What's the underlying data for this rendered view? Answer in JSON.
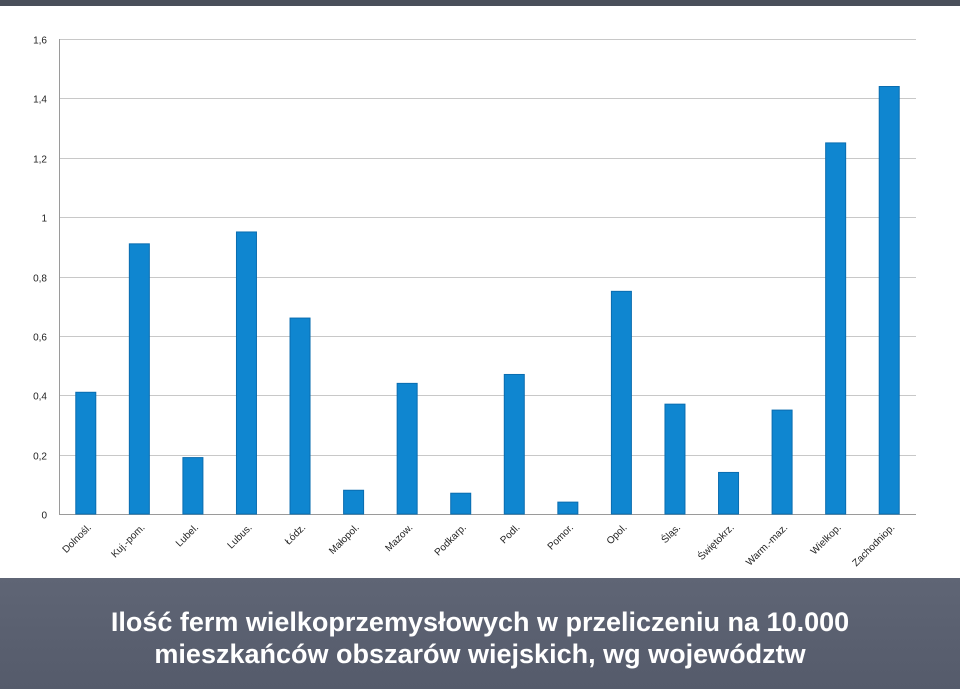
{
  "caption": {
    "line1": "Ilość ferm wielkoprzemysłowych w przeliczeniu na 10.000",
    "line2": "mieszkańców obszarów wiejskich, wg województw"
  },
  "colors": {
    "bar": "#0f86d0",
    "bar_edge": "#0a6db0",
    "grid": "#c8c8c8",
    "caption_bg": "#5a6070",
    "caption_text": "#ffffff"
  },
  "chart_data": {
    "type": "bar",
    "title": "",
    "xlabel": "",
    "ylabel": "",
    "ylim": [
      0,
      1.6
    ],
    "yticks": [
      "0",
      "0,2",
      "0,4",
      "0,6",
      "0,8",
      "1",
      "1,2",
      "1,4",
      "1,6"
    ],
    "grid": true,
    "legend": "none",
    "categories": [
      "Dolnośl.",
      "Kuj.-pom.",
      "Lubel.",
      "Lubus.",
      "Łódz.",
      "Małopol.",
      "Mazow.",
      "Podkarp.",
      "Podl.",
      "Pomor.",
      "Opol.",
      "Śląs.",
      "Świętokrz.",
      "Warm.-maz.",
      "Wielkop.",
      "Zachodniop."
    ],
    "values": [
      0.41,
      0.91,
      0.19,
      0.95,
      0.66,
      0.08,
      0.44,
      0.07,
      0.47,
      0.04,
      0.75,
      0.37,
      0.14,
      0.35,
      1.25,
      1.44
    ]
  }
}
